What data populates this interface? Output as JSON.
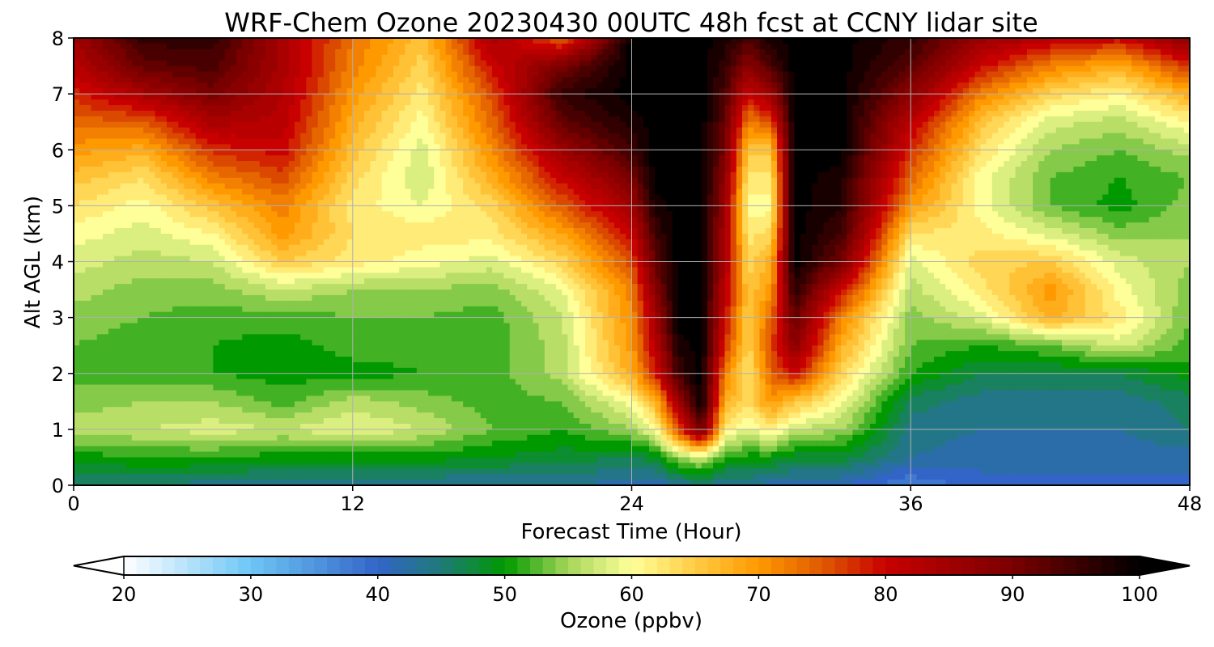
{
  "chart_data": {
    "type": "heatmap",
    "title": "WRF-Chem Ozone  20230430 00UTC 48h fcst at CCNY lidar site",
    "xlabel": "Forecast Time (Hour)",
    "ylabel": "Alt AGL (km)",
    "xlim": [
      0,
      48
    ],
    "ylim": [
      0,
      8
    ],
    "x_ticks": [
      0,
      12,
      24,
      36,
      48
    ],
    "y_ticks": [
      0,
      1,
      2,
      3,
      4,
      5,
      6,
      7,
      8
    ],
    "grid": true,
    "colorbar": {
      "label": "Ozone  (ppbv)",
      "min": 20,
      "max": 100,
      "ticks": [
        20,
        30,
        40,
        50,
        60,
        70,
        80,
        90,
        100
      ],
      "extend": "both",
      "orientation": "horizontal",
      "color_stops": [
        {
          "v": 20,
          "c": "#ffffff"
        },
        {
          "v": 30,
          "c": "#6ec6f5"
        },
        {
          "v": 40,
          "c": "#3365c8"
        },
        {
          "v": 45,
          "c": "#1f7a78"
        },
        {
          "v": 50,
          "c": "#009900"
        },
        {
          "v": 55,
          "c": "#a6d65a"
        },
        {
          "v": 60,
          "c": "#ffff99"
        },
        {
          "v": 65,
          "c": "#ffcc44"
        },
        {
          "v": 70,
          "c": "#ff9900"
        },
        {
          "v": 75,
          "c": "#e05a00"
        },
        {
          "v": 80,
          "c": "#c80000"
        },
        {
          "v": 90,
          "c": "#7a0000"
        },
        {
          "v": 100,
          "c": "#000000"
        }
      ]
    },
    "x": [
      0,
      3,
      6,
      9,
      12,
      15,
      18,
      21,
      24,
      25,
      26,
      27,
      28,
      29,
      30,
      31,
      33,
      36,
      39,
      42,
      45,
      48
    ],
    "y": [
      0,
      0.5,
      1,
      1.5,
      2,
      2.5,
      3,
      3.5,
      4,
      4.5,
      5,
      5.5,
      6,
      6.5,
      7,
      7.5,
      8
    ],
    "z": [
      [
        45,
        45,
        44,
        43,
        43,
        43,
        43,
        43,
        42,
        41,
        43,
        45,
        42,
        43,
        42,
        41,
        41,
        37,
        40,
        40,
        40,
        40
      ],
      [
        50,
        51,
        51,
        50,
        50,
        50,
        49,
        48,
        47,
        48,
        55,
        57,
        52,
        50,
        50,
        48,
        48,
        43,
        42,
        42,
        42,
        42
      ],
      [
        56,
        57,
        58,
        57,
        59,
        57,
        53,
        51,
        55,
        60,
        76,
        92,
        62,
        58,
        62,
        57,
        55,
        44,
        43,
        43,
        43,
        45
      ],
      [
        54,
        55,
        55,
        52,
        56,
        54,
        52,
        53,
        60,
        67,
        85,
        100,
        68,
        64,
        70,
        66,
        60,
        46,
        44,
        44,
        44,
        46
      ],
      [
        52,
        52,
        51,
        50,
        50,
        51,
        52,
        56,
        68,
        78,
        95,
        100,
        72,
        62,
        74,
        80,
        64,
        51,
        47,
        47,
        47,
        50
      ],
      [
        53,
        52,
        51,
        50,
        52,
        52,
        52,
        56,
        70,
        82,
        98,
        100,
        78,
        64,
        76,
        88,
        68,
        53,
        51,
        53,
        58,
        52
      ],
      [
        54,
        53,
        52,
        52,
        53,
        53,
        52,
        57,
        71,
        84,
        100,
        100,
        80,
        65,
        74,
        92,
        72,
        54,
        58,
        68,
        62,
        53
      ],
      [
        56,
        54,
        54,
        57,
        55,
        55,
        54,
        59,
        72,
        88,
        100,
        100,
        82,
        65,
        70,
        97,
        80,
        56,
        62,
        70,
        60,
        54
      ],
      [
        58,
        56,
        57,
        65,
        62,
        60,
        58,
        64,
        76,
        92,
        100,
        100,
        84,
        64,
        68,
        100,
        90,
        58,
        64,
        65,
        58,
        55
      ],
      [
        60,
        58,
        61,
        70,
        63,
        62,
        62,
        69,
        80,
        95,
        100,
        100,
        85,
        62,
        64,
        100,
        95,
        63,
        62,
        58,
        54,
        55
      ],
      [
        63,
        60,
        66,
        72,
        62,
        59,
        64,
        75,
        85,
        98,
        100,
        100,
        86,
        60,
        60,
        100,
        97,
        70,
        60,
        53,
        50,
        54
      ],
      [
        66,
        63,
        72,
        76,
        64,
        57,
        68,
        80,
        90,
        100,
        100,
        100,
        88,
        62,
        62,
        100,
        98,
        74,
        60,
        53,
        51,
        53
      ],
      [
        70,
        68,
        78,
        80,
        66,
        58,
        71,
        86,
        95,
        100,
        100,
        100,
        90,
        66,
        66,
        100,
        100,
        78,
        63,
        55,
        53,
        56
      ],
      [
        74,
        75,
        84,
        82,
        68,
        60,
        74,
        92,
        98,
        100,
        100,
        100,
        92,
        72,
        76,
        100,
        100,
        82,
        66,
        58,
        56,
        61
      ],
      [
        78,
        84,
        90,
        83,
        70,
        62,
        76,
        96,
        100,
        100,
        100,
        100,
        94,
        80,
        86,
        100,
        100,
        88,
        72,
        64,
        61,
        68
      ],
      [
        82,
        92,
        94,
        84,
        72,
        64,
        80,
        90,
        100,
        100,
        100,
        100,
        96,
        88,
        94,
        100,
        100,
        93,
        80,
        72,
        68,
        78
      ],
      [
        85,
        96,
        96,
        84,
        73,
        66,
        84,
        74,
        100,
        100,
        100,
        100,
        98,
        94,
        98,
        100,
        100,
        96,
        86,
        82,
        80,
        88
      ]
    ]
  }
}
